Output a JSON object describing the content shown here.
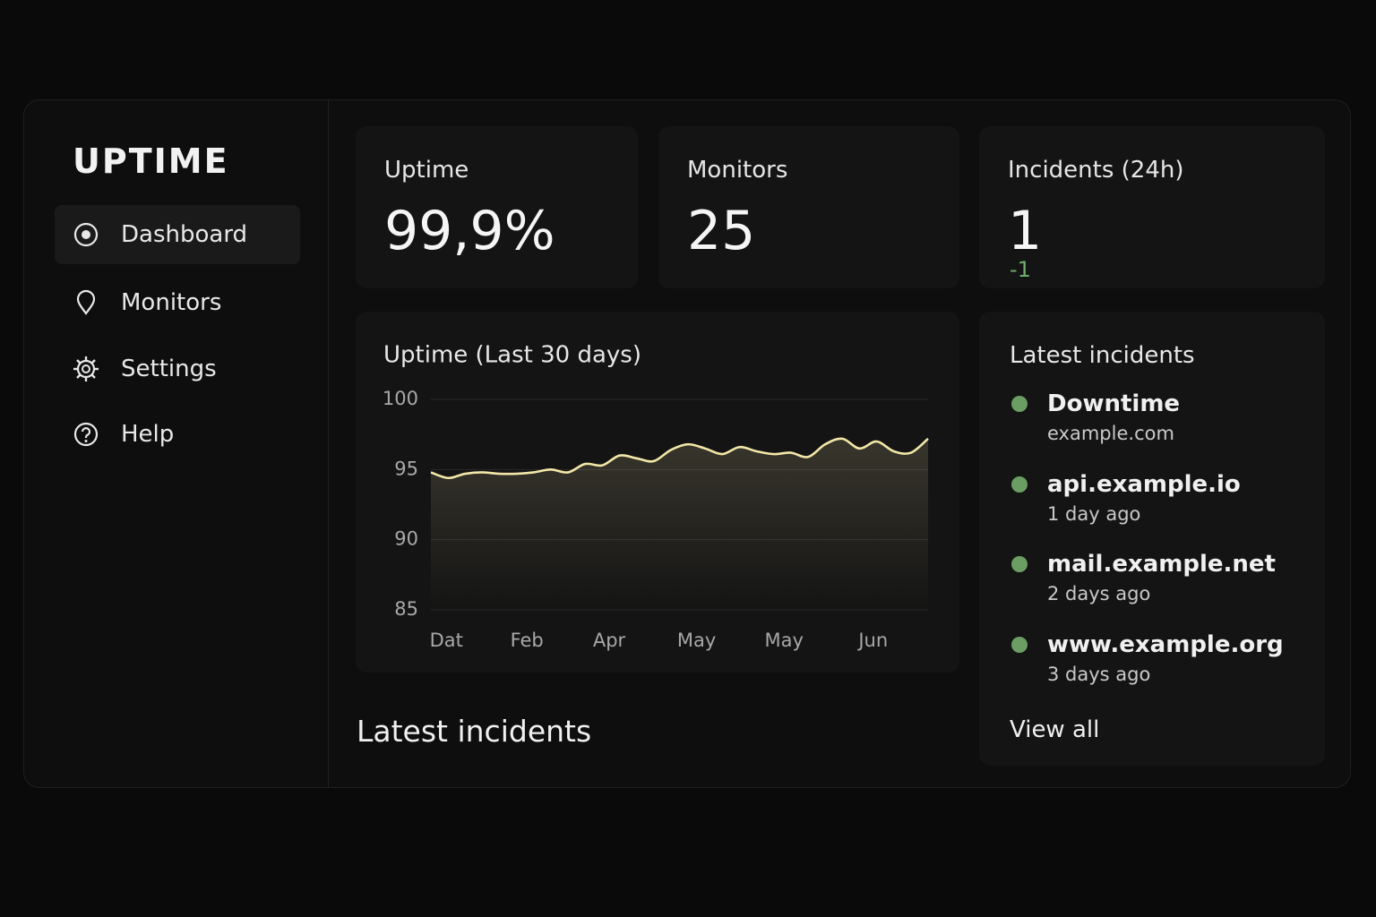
{
  "sidebar": {
    "brand": "UPTIME",
    "nav": [
      "Dashboard",
      "Monitors",
      "Settings",
      "Help"
    ]
  },
  "stats": [
    {
      "label": "Uptime",
      "value": "99,9%"
    },
    {
      "label": "Monitors",
      "value": "25"
    },
    {
      "label": "Incidents (24h)",
      "value": "1",
      "delta": "-1"
    }
  ],
  "chart_data": {
    "type": "line",
    "title": "Uptime (Last 30 days)",
    "x": [
      0,
      1,
      2,
      3,
      4,
      5,
      6,
      7,
      8,
      9,
      10,
      11,
      12,
      13,
      14,
      15,
      16,
      17,
      18,
      19,
      20,
      21,
      22,
      23,
      24,
      25,
      26,
      27,
      28,
      29
    ],
    "values": [
      94.8,
      94.4,
      94.7,
      94.8,
      94.7,
      94.7,
      94.8,
      95.0,
      94.8,
      95.4,
      95.3,
      96.0,
      95.8,
      95.6,
      96.4,
      96.8,
      96.5,
      96.1,
      96.6,
      96.3,
      96.1,
      96.2,
      95.9,
      96.8,
      97.2,
      96.5,
      97.0,
      96.3,
      96.2,
      97.2
    ],
    "color": "#f3e7a8",
    "xlim": [
      0,
      29
    ],
    "xticks": [
      {
        "value": 0.9,
        "label": "Dat"
      },
      {
        "value": 5.6,
        "label": "Feb"
      },
      {
        "value": 10.4,
        "label": "Apr"
      },
      {
        "value": 15.5,
        "label": "May"
      },
      {
        "value": 20.6,
        "label": "May"
      },
      {
        "value": 25.8,
        "label": "Jun"
      }
    ],
    "ylim": [
      85,
      100
    ],
    "yticks": [
      85,
      90,
      95,
      100
    ],
    "grid": true
  },
  "incidents_panel": {
    "title": "Latest incidents",
    "items": [
      {
        "title": "Downtime",
        "subtitle": "example.com"
      },
      {
        "title": "api.example.io",
        "subtitle": "1 day ago"
      },
      {
        "title": "mail.example.net",
        "subtitle": "2 days ago"
      },
      {
        "title": "www.example.org",
        "subtitle": "3 days ago"
      }
    ],
    "link": "View all"
  },
  "section_title": "Latest incidents"
}
